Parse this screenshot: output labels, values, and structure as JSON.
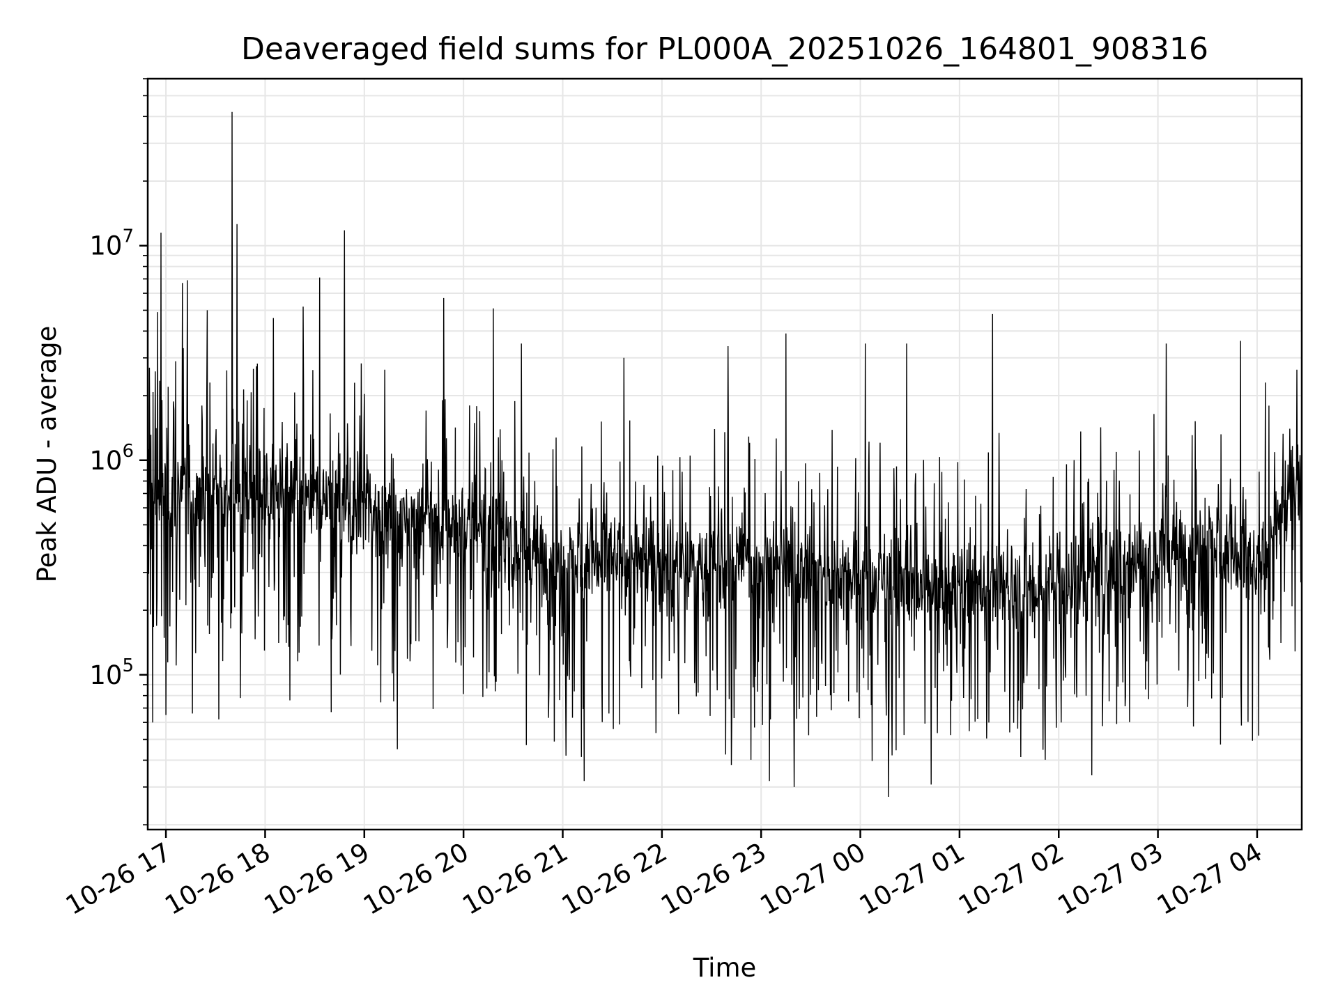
{
  "chart_data": {
    "type": "line",
    "title": "Deaveraged field sums for PL000A_20251026_164801_908316",
    "xlabel": "Time",
    "ylabel": "Peak ADU - average",
    "yscale": "log",
    "grid": true,
    "grid_minor": true,
    "xlim": [
      "2025-10-26T16:49",
      "2025-10-27T04:27"
    ],
    "ylim": [
      19000,
      60000000
    ],
    "x_ticks": [
      "10-26 17",
      "10-26 18",
      "10-26 19",
      "10-26 20",
      "10-26 21",
      "10-26 22",
      "10-26 23",
      "10-27 00",
      "10-27 01",
      "10-27 02",
      "10-27 03",
      "10-27 04"
    ],
    "y_ticks": [
      {
        "value": 100000,
        "base": "10",
        "exp": "5"
      },
      {
        "value": 1000000,
        "base": "10",
        "exp": "6"
      },
      {
        "value": 10000000,
        "base": "10",
        "exp": "7"
      }
    ],
    "series": [
      {
        "color": "#000000",
        "start": "2025-10-26T16:49",
        "end": "2025-10-27T04:27",
        "baseline": [
          [
            "2025-10-26T16:49",
            700000
          ],
          [
            "2025-10-26T17:30",
            750000
          ],
          [
            "2025-10-26T18:30",
            650000
          ],
          [
            "2025-10-26T19:30",
            550000
          ],
          [
            "2025-10-26T20:30",
            420000
          ],
          [
            "2025-10-26T21:00",
            330000
          ],
          [
            "2025-10-26T22:30",
            330000
          ],
          [
            "2025-10-27T00:00",
            300000
          ],
          [
            "2025-10-27T00:30",
            250000
          ],
          [
            "2025-10-27T02:00",
            260000
          ],
          [
            "2025-10-27T02:30",
            320000
          ],
          [
            "2025-10-27T03:30",
            420000
          ],
          [
            "2025-10-27T04:00",
            280000
          ],
          [
            "2025-10-27T04:27",
            950000
          ]
        ],
        "spikes": [
          [
            "2025-10-26T16:50",
            2700000
          ],
          [
            "2025-10-26T16:52",
            60000
          ],
          [
            "2025-10-26T16:55",
            4900000
          ],
          [
            "2025-10-26T16:57",
            11500000
          ],
          [
            "2025-10-26T17:00",
            65000
          ],
          [
            "2025-10-26T17:10",
            6700000
          ],
          [
            "2025-10-26T17:13",
            6900000
          ],
          [
            "2025-10-26T17:16",
            66000
          ],
          [
            "2025-10-26T17:25",
            5000000
          ],
          [
            "2025-10-26T17:32",
            62000
          ],
          [
            "2025-10-26T17:40",
            42000000
          ],
          [
            "2025-10-26T17:43",
            12600000
          ],
          [
            "2025-10-26T17:45",
            78000
          ],
          [
            "2025-10-26T18:05",
            4600000
          ],
          [
            "2025-10-26T18:15",
            76000
          ],
          [
            "2025-10-26T18:23",
            5200000
          ],
          [
            "2025-10-26T18:33",
            7100000
          ],
          [
            "2025-10-26T18:40",
            67000
          ],
          [
            "2025-10-26T18:48",
            11800000
          ],
          [
            "2025-10-26T19:20",
            45000
          ],
          [
            "2025-10-26T19:48",
            5700000
          ],
          [
            "2025-10-26T20:18",
            5100000
          ],
          [
            "2025-10-26T20:35",
            3500000
          ],
          [
            "2025-10-26T20:38",
            47000
          ],
          [
            "2025-10-26T21:02",
            42000
          ],
          [
            "2025-10-26T21:13",
            32000
          ],
          [
            "2025-10-26T21:37",
            3000000
          ],
          [
            "2025-10-26T22:40",
            3400000
          ],
          [
            "2025-10-26T22:42",
            38000
          ],
          [
            "2025-10-26T23:05",
            32000
          ],
          [
            "2025-10-26T23:15",
            3900000
          ],
          [
            "2025-10-26T23:20",
            30000
          ],
          [
            "2025-10-27T00:03",
            3500000
          ],
          [
            "2025-10-27T00:17",
            27000
          ],
          [
            "2025-10-27T00:28",
            3500000
          ],
          [
            "2025-10-27T01:20",
            4800000
          ],
          [
            "2025-10-27T02:20",
            34000
          ],
          [
            "2025-10-27T03:05",
            3500000
          ],
          [
            "2025-10-27T03:50",
            3600000
          ],
          [
            "2025-10-27T04:05",
            2300000
          ]
        ]
      }
    ]
  }
}
